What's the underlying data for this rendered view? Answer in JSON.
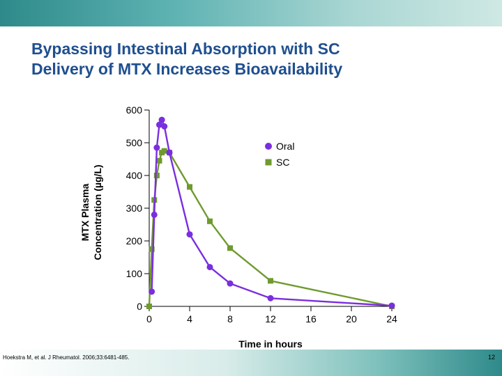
{
  "slide": {
    "title_line1": "Bypassing Intestinal Absorption with SC",
    "title_line2": "Delivery of MTX Increases Bioavailability",
    "citation": "Hoekstra M, et al. J Rheumatol. 2006;33:6481-485.",
    "page_number": "12"
  },
  "colors": {
    "oral": "#7a2ee0",
    "sc": "#6e9a2e",
    "title": "#1f4f8f"
  },
  "chart_data": {
    "type": "line",
    "xlabel": "Time in hours",
    "ylabel_line1": "MTX Plasma",
    "ylabel_line2": "Concentration (µg/L)",
    "xlim": [
      0,
      24
    ],
    "ylim": [
      0,
      600
    ],
    "x_ticks": [
      0,
      4,
      8,
      12,
      16,
      20,
      24
    ],
    "y_ticks": [
      0,
      100,
      200,
      300,
      400,
      500,
      600
    ],
    "x_tick_labels": [
      "0",
      "4",
      "8",
      "12",
      "16",
      "20",
      "24"
    ],
    "y_tick_labels": [
      "0",
      "100",
      "200",
      "300",
      "400",
      "500",
      "600"
    ],
    "legend_position": "top-right",
    "series": [
      {
        "name": "Oral",
        "marker": "circle",
        "points": [
          [
            0.25,
            45
          ],
          [
            0.5,
            280
          ],
          [
            0.75,
            485
          ],
          [
            1.0,
            555
          ],
          [
            1.25,
            570
          ],
          [
            1.5,
            550
          ],
          [
            2.0,
            470
          ],
          [
            4.0,
            220
          ],
          [
            6.0,
            120
          ],
          [
            8.0,
            70
          ],
          [
            12.0,
            25
          ],
          [
            24.0,
            2
          ]
        ]
      },
      {
        "name": "SC",
        "marker": "square",
        "points": [
          [
            0.0,
            0
          ],
          [
            0.25,
            175
          ],
          [
            0.5,
            325
          ],
          [
            0.75,
            400
          ],
          [
            1.0,
            445
          ],
          [
            1.25,
            470
          ],
          [
            1.5,
            475
          ],
          [
            2.0,
            470
          ],
          [
            4.0,
            365
          ],
          [
            6.0,
            260
          ],
          [
            8.0,
            178
          ],
          [
            12.0,
            78
          ],
          [
            24.0,
            0
          ]
        ]
      }
    ]
  }
}
